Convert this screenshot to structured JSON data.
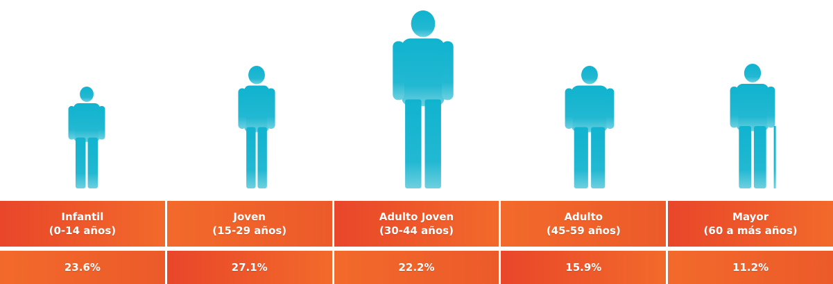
{
  "groups": [
    {
      "label": "Infantil",
      "range": "(0-14 años)",
      "share": "23.6%"
    },
    {
      "label": "Joven",
      "range": "(15-29 años)",
      "share": "27.1%"
    },
    {
      "label": "Adulto Joven",
      "range": "(30-44 años)",
      "share": "22.2%"
    },
    {
      "label": "Adulto",
      "range": "(45-59 años)",
      "share": "15.9%"
    },
    {
      "label": "Mayor",
      "range": "(60 a más años)",
      "share": "11.2%"
    }
  ]
}
